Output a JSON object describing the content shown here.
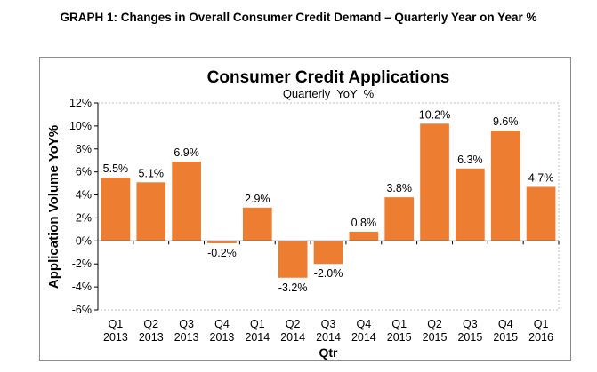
{
  "page_caption": "GRAPH 1: Changes in Overall Consumer Credit Demand – Quarterly Year on Year %",
  "chart_data": {
    "type": "bar",
    "title": "Consumer Credit Applications",
    "subtitle": "Quarterly  YoY  %",
    "ylabel": "Application Volume YoY%",
    "xlabel": "Qtr",
    "ylim": [
      -6,
      12
    ],
    "yticks": [
      -6,
      -4,
      -2,
      0,
      2,
      4,
      6,
      8,
      10,
      12
    ],
    "ytick_labels": [
      "-6%",
      "-4%",
      "-2%",
      "0%",
      "2%",
      "4%",
      "6%",
      "8%",
      "10%",
      "12%"
    ],
    "categories": [
      [
        "Q1",
        "2013"
      ],
      [
        "Q2",
        "2013"
      ],
      [
        "Q3",
        "2013"
      ],
      [
        "Q4",
        "2013"
      ],
      [
        "Q1",
        "2014"
      ],
      [
        "Q2",
        "2014"
      ],
      [
        "Q3",
        "2014"
      ],
      [
        "Q4",
        "2014"
      ],
      [
        "Q1",
        "2015"
      ],
      [
        "Q2",
        "2015"
      ],
      [
        "Q3",
        "2015"
      ],
      [
        "Q4",
        "2015"
      ],
      [
        "Q1",
        "2016"
      ]
    ],
    "values": [
      5.5,
      5.1,
      6.9,
      -0.2,
      2.9,
      -3.2,
      -2.0,
      0.8,
      3.8,
      10.2,
      6.3,
      9.6,
      4.7
    ],
    "data_labels": [
      "5.5%",
      "5.1%",
      "6.9%",
      "-0.2%",
      "2.9%",
      "-3.2%",
      "-2.0%",
      "0.8%",
      "3.8%",
      "10.2%",
      "6.3%",
      "9.6%",
      "4.7%"
    ],
    "bar_color": "#ED7D31",
    "grid": false,
    "legend": "none"
  }
}
